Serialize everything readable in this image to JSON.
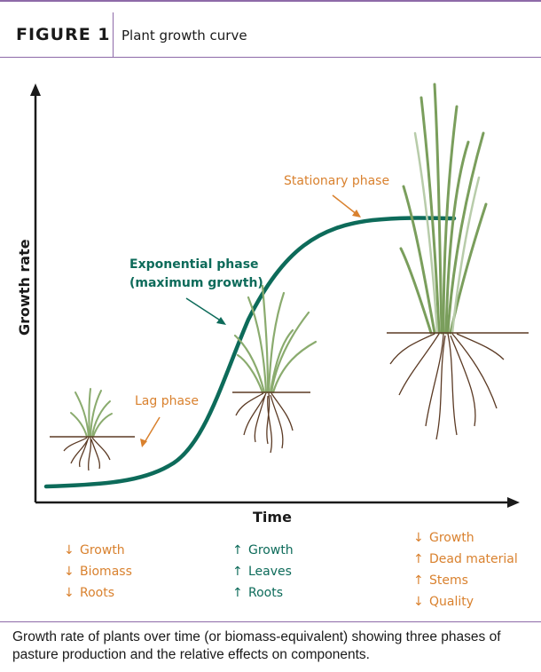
{
  "header": {
    "figure_label": "FIGURE 1",
    "title": "Plant growth curve"
  },
  "diagram": {
    "y_axis_label": "Growth rate",
    "x_axis_label": "Time",
    "phases": {
      "lag": "Lag phase",
      "exponential_line1": "Exponential phase",
      "exponential_line2": "(maximum growth)",
      "stationary": "Stationary phase"
    },
    "colors": {
      "curve": "#0d6b5a",
      "lag_text": "#d9812e",
      "green_text": "#0d6b5a",
      "soil": "#5b3a24",
      "grass": "#8aab6e"
    }
  },
  "effects": {
    "lag": [
      {
        "arrow": "↓",
        "label": "Growth"
      },
      {
        "arrow": "↓",
        "label": "Biomass"
      },
      {
        "arrow": "↓",
        "label": "Roots"
      }
    ],
    "exponential": [
      {
        "arrow": "↑",
        "label": "Growth"
      },
      {
        "arrow": "↑",
        "label": "Leaves"
      },
      {
        "arrow": "↑",
        "label": "Roots"
      }
    ],
    "stationary": [
      {
        "arrow": "↓",
        "label": "Growth"
      },
      {
        "arrow": "↑",
        "label": "Dead material"
      },
      {
        "arrow": "↑",
        "label": "Stems"
      },
      {
        "arrow": "↓",
        "label": "Quality"
      }
    ]
  },
  "caption": "Growth rate of plants over time (or biomass-equivalent) showing three phases of pasture production and the relative effects on components."
}
